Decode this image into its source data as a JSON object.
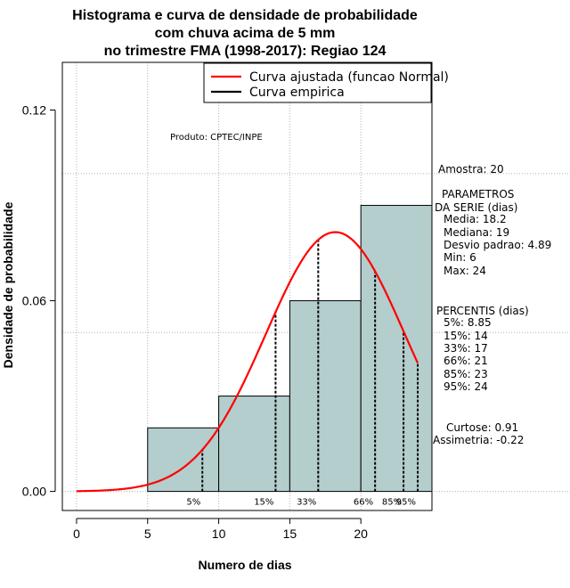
{
  "chart_data": {
    "type": "bar",
    "title_lines": [
      "Histograma e curva de densidade de probabilidade",
      "com chuva acima de 5 mm",
      "no trimestre FMA (1998-2017): Regiao 124"
    ],
    "xlabel": "Numero de dias",
    "ylabel": "Densidade de probabilidade",
    "xlim": [
      -1,
      25
    ],
    "ylim": [
      -0.006,
      0.135
    ],
    "x_ticks": [
      0,
      5,
      10,
      15,
      20
    ],
    "y_ticks": [
      0.0,
      0.06,
      0.12
    ],
    "y_tick_labels": [
      "0.00",
      "0.06",
      "0.12"
    ],
    "grid": true,
    "bins": [
      {
        "from": 5,
        "to": 10,
        "density": 0.02
      },
      {
        "from": 10,
        "to": 15,
        "density": 0.03
      },
      {
        "from": 15,
        "to": 20,
        "density": 0.06
      },
      {
        "from": 20,
        "to": 25,
        "density": 0.09
      }
    ],
    "fit_curve": {
      "name": "Curva ajustada (funcao Normal)",
      "distribution": "normal",
      "mean": 18.2,
      "sd": 4.89,
      "x_range": [
        0,
        24
      ],
      "color": "#ff0000"
    },
    "empirical_curve": {
      "name": "Curva empirica",
      "color": "#000000"
    },
    "legend_position": "top-right",
    "percentile_markers": [
      {
        "label": "5%",
        "x": 8.85
      },
      {
        "label": "15%",
        "x": 14
      },
      {
        "label": "33%",
        "x": 17
      },
      {
        "label": "66%",
        "x": 21
      },
      {
        "label": "85%",
        "x": 23
      },
      {
        "label": "95%",
        "x": 24
      }
    ],
    "bar_color": "#b4cdcd",
    "source_label": "Produto: CPTEC/INPE"
  },
  "side_panel": {
    "sample": "Amostra: 20",
    "params_title": [
      "PARAMETROS",
      "DA SERIE (dias)"
    ],
    "params": [
      "Media: 18.2",
      "Mediana: 19",
      "Desvio padrao: 4.89",
      "Min: 6",
      "Max: 24"
    ],
    "percentis_title": "PERCENTIS (dias)",
    "percentis": [
      "5%: 8.85",
      "15%: 14",
      "33%: 17",
      "66%: 21",
      "85%: 23",
      "95%: 24"
    ],
    "curtose": "Curtose: 0.91",
    "assimetria": "Assimetria: -0.22"
  }
}
